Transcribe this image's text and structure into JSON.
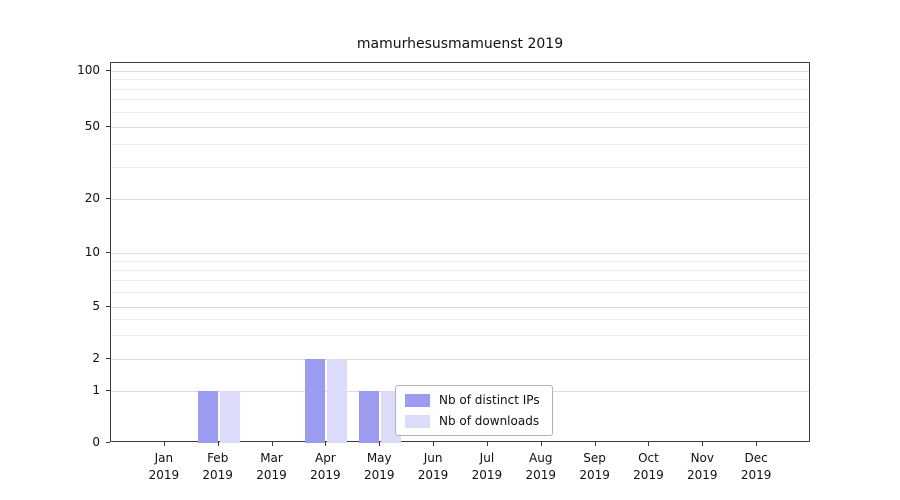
{
  "chart_data": {
    "type": "bar",
    "title": "mamurhesusmamuenst 2019",
    "categories": [
      "Jan",
      "Feb",
      "Mar",
      "Apr",
      "May",
      "Jun",
      "Jul",
      "Aug",
      "Sep",
      "Oct",
      "Nov",
      "Dec"
    ],
    "category_year": "2019",
    "series": [
      {
        "name": "Nb of distinct IPs",
        "color": "#9b9bef",
        "values": [
          0,
          1,
          0,
          2,
          1,
          0,
          0,
          0,
          0,
          0,
          0,
          0
        ]
      },
      {
        "name": "Nb of downloads",
        "color": "#dcdcfa",
        "values": [
          0,
          1,
          0,
          2,
          1,
          0,
          0,
          0,
          0,
          0,
          0,
          0
        ]
      }
    ],
    "yticks": [
      0,
      1,
      2,
      5,
      10,
      20,
      50,
      100
    ],
    "ylim": [
      0,
      100
    ],
    "yscale": "symlog",
    "grid": true,
    "legend_position": "lower center"
  }
}
